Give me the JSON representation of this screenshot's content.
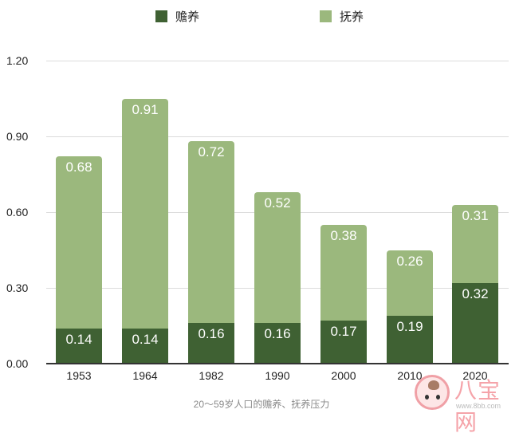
{
  "chart_data": {
    "type": "bar",
    "stacked": true,
    "title": "",
    "caption": "20～59岁人口的赡养、抚养压力",
    "xlabel": "",
    "ylabel": "",
    "ylim": [
      0,
      1.2
    ],
    "yticks": [
      "0.00",
      "0.30",
      "0.60",
      "0.90",
      "1.20"
    ],
    "grid": true,
    "legend_position": "top",
    "categories": [
      "1953",
      "1964",
      "1982",
      "1990",
      "2000",
      "2010",
      "2020"
    ],
    "series": [
      {
        "name": "赡养",
        "color": "#3f6133",
        "values": [
          0.14,
          0.14,
          0.16,
          0.16,
          0.17,
          0.19,
          0.32
        ],
        "labels": [
          "0.14",
          "0.14",
          "0.16",
          "0.16",
          "0.17",
          "0.19",
          "0.32"
        ]
      },
      {
        "name": "抚养",
        "color": "#9bb87d",
        "values": [
          0.68,
          0.91,
          0.72,
          0.52,
          0.38,
          0.26,
          0.31
        ],
        "labels": [
          "0.68",
          "0.91",
          "0.72",
          "0.52",
          "0.38",
          "0.26",
          "0.31"
        ]
      }
    ]
  },
  "legend": {
    "items": [
      {
        "label": "赡养",
        "color": "#3f6133"
      },
      {
        "label": "抚养",
        "color": "#9bb87d"
      }
    ]
  },
  "watermark": {
    "text": "八宝网",
    "url": "www.8bb.com"
  }
}
